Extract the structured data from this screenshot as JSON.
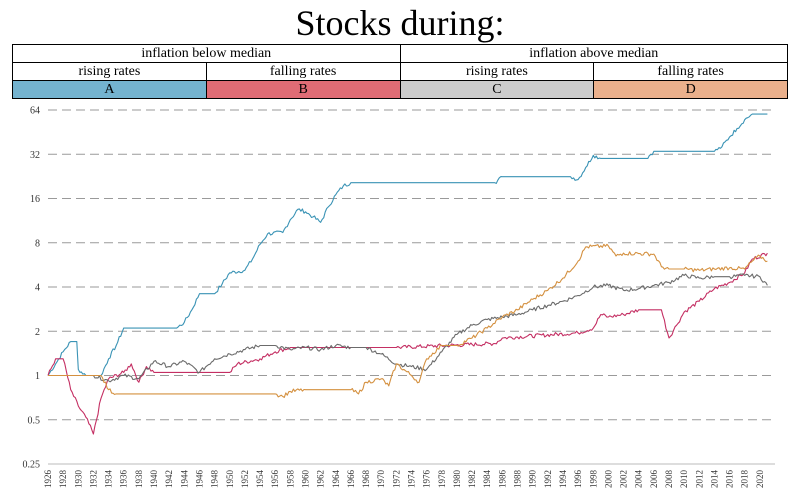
{
  "title": "Stocks during:",
  "header": {
    "groups": [
      "inflation below median",
      "inflation above median"
    ],
    "subgroups": [
      "rising rates",
      "falling rates",
      "rising rates",
      "falling rates"
    ],
    "regimes": [
      {
        "letter": "A",
        "color": "#74b3cf"
      },
      {
        "letter": "B",
        "color": "#e06c75"
      },
      {
        "letter": "C",
        "color": "#cccccc"
      },
      {
        "letter": "D",
        "color": "#eab08c"
      }
    ]
  },
  "chart_data": {
    "type": "line",
    "title": "Stocks during:",
    "xlabel": "",
    "ylabel": "",
    "yscale": "log2",
    "ylim": [
      0.25,
      64
    ],
    "yticks": [
      0.25,
      0.5,
      1,
      2,
      4,
      8,
      16,
      32,
      64
    ],
    "ytick_labels": [
      "0.25",
      "0.5",
      "1",
      "2",
      "4",
      "8",
      "16",
      "32",
      "64"
    ],
    "xlim": [
      1926,
      2022
    ],
    "xticks": [
      1926,
      1928,
      1930,
      1932,
      1934,
      1936,
      1938,
      1940,
      1942,
      1944,
      1946,
      1948,
      1950,
      1952,
      1954,
      1956,
      1958,
      1960,
      1962,
      1964,
      1966,
      1968,
      1970,
      1972,
      1974,
      1976,
      1978,
      1980,
      1982,
      1984,
      1986,
      1988,
      1990,
      1992,
      1994,
      1996,
      1998,
      2000,
      2002,
      2004,
      2006,
      2008,
      2010,
      2012,
      2014,
      2016,
      2018,
      2020
    ],
    "grid": "horizontal-dashed",
    "series": [
      {
        "regime": "A",
        "color": "#3a93b5",
        "points": [
          [
            1926,
            1.0
          ],
          [
            1927,
            1.2
          ],
          [
            1928,
            1.45
          ],
          [
            1929,
            1.7
          ],
          [
            1929.8,
            1.7
          ],
          [
            1930,
            1.1
          ],
          [
            1931,
            1.0
          ],
          [
            1933,
            1.0
          ],
          [
            1934,
            1.3
          ],
          [
            1935,
            1.6
          ],
          [
            1936,
            2.1
          ],
          [
            1943,
            2.1
          ],
          [
            1944,
            2.3
          ],
          [
            1945,
            2.8
          ],
          [
            1946,
            3.6
          ],
          [
            1948,
            3.6
          ],
          [
            1949,
            4.2
          ],
          [
            1950,
            5.0
          ],
          [
            1952,
            5.2
          ],
          [
            1953,
            6.2
          ],
          [
            1954,
            7.8
          ],
          [
            1955,
            9.2
          ],
          [
            1957,
            9.4
          ],
          [
            1958,
            11.5
          ],
          [
            1959,
            13.5
          ],
          [
            1960,
            13.0
          ],
          [
            1961,
            12.0
          ],
          [
            1962,
            11.0
          ],
          [
            1963,
            14.0
          ],
          [
            1964,
            17.0
          ],
          [
            1965,
            19.5
          ],
          [
            1966,
            20.5
          ],
          [
            1985,
            20.5
          ],
          [
            1986,
            22.5
          ],
          [
            1995,
            22.5
          ],
          [
            1996,
            21.5
          ],
          [
            1997,
            26.0
          ],
          [
            1998,
            31.5
          ],
          [
            1999,
            30.0
          ],
          [
            2005,
            30.0
          ],
          [
            2006,
            33.5
          ],
          [
            2014,
            33.5
          ],
          [
            2015,
            36.0
          ],
          [
            2016,
            42.0
          ],
          [
            2017,
            48.0
          ],
          [
            2018,
            55.0
          ],
          [
            2019,
            60.0
          ],
          [
            2021,
            60.0
          ]
        ]
      },
      {
        "regime": "B",
        "color": "#c42f63",
        "points": [
          [
            1926,
            1.0
          ],
          [
            1927,
            1.3
          ],
          [
            1928,
            1.3
          ],
          [
            1929,
            0.8
          ],
          [
            1930,
            0.62
          ],
          [
            1931,
            0.52
          ],
          [
            1932,
            0.4
          ],
          [
            1933,
            0.7
          ],
          [
            1934,
            0.95
          ],
          [
            1936,
            1.05
          ],
          [
            1937,
            1.2
          ],
          [
            1938,
            0.9
          ],
          [
            1939,
            1.15
          ],
          [
            1940,
            1.05
          ],
          [
            1950,
            1.05
          ],
          [
            1951,
            1.2
          ],
          [
            1954,
            1.3
          ],
          [
            1956,
            1.45
          ],
          [
            1958,
            1.55
          ],
          [
            1972,
            1.55
          ],
          [
            1985,
            1.65
          ],
          [
            1986,
            1.8
          ],
          [
            1996,
            1.95
          ],
          [
            1998,
            2.1
          ],
          [
            1999,
            2.6
          ],
          [
            2000,
            2.5
          ],
          [
            2002,
            2.6
          ],
          [
            2004,
            2.8
          ],
          [
            2007,
            2.8
          ],
          [
            2008,
            1.8
          ],
          [
            2009,
            2.2
          ],
          [
            2010,
            2.7
          ],
          [
            2012,
            3.2
          ],
          [
            2014,
            3.9
          ],
          [
            2016,
            4.3
          ],
          [
            2018,
            5.0
          ],
          [
            2019,
            6.2
          ],
          [
            2021,
            6.8
          ]
        ]
      },
      {
        "regime": "C",
        "color": "#6b6b6b",
        "points": [
          [
            1926,
            1.0
          ],
          [
            1928,
            1.0
          ],
          [
            1930,
            1.0
          ],
          [
            1932,
            1.0
          ],
          [
            1934,
            0.92
          ],
          [
            1936,
            1.0
          ],
          [
            1938,
            0.95
          ],
          [
            1940,
            1.25
          ],
          [
            1942,
            1.15
          ],
          [
            1944,
            1.25
          ],
          [
            1946,
            1.05
          ],
          [
            1948,
            1.3
          ],
          [
            1950,
            1.4
          ],
          [
            1952,
            1.5
          ],
          [
            1954,
            1.6
          ],
          [
            1956,
            1.6
          ],
          [
            1958,
            1.5
          ],
          [
            1960,
            1.55
          ],
          [
            1962,
            1.5
          ],
          [
            1964,
            1.6
          ],
          [
            1966,
            1.55
          ],
          [
            1968,
            1.55
          ],
          [
            1970,
            1.4
          ],
          [
            1972,
            1.2
          ],
          [
            1974,
            1.15
          ],
          [
            1976,
            1.1
          ],
          [
            1978,
            1.45
          ],
          [
            1980,
            1.9
          ],
          [
            1982,
            2.2
          ],
          [
            1984,
            2.4
          ],
          [
            1986,
            2.5
          ],
          [
            1988,
            2.6
          ],
          [
            1990,
            2.8
          ],
          [
            1992,
            3.0
          ],
          [
            1994,
            3.2
          ],
          [
            1996,
            3.5
          ],
          [
            1998,
            4.0
          ],
          [
            2000,
            4.1
          ],
          [
            2002,
            3.8
          ],
          [
            2004,
            3.9
          ],
          [
            2006,
            4.1
          ],
          [
            2008,
            4.3
          ],
          [
            2010,
            4.8
          ],
          [
            2012,
            4.6
          ],
          [
            2014,
            4.7
          ],
          [
            2016,
            4.7
          ],
          [
            2018,
            4.8
          ],
          [
            2020,
            4.7
          ],
          [
            2021,
            4.1
          ]
        ]
      },
      {
        "regime": "D",
        "color": "#d4903f",
        "points": [
          [
            1926,
            1.0
          ],
          [
            1928,
            1.0
          ],
          [
            1931,
            1.0
          ],
          [
            1933,
            1.0
          ],
          [
            1934,
            0.8
          ],
          [
            1935,
            0.75
          ],
          [
            1956,
            0.75
          ],
          [
            1957,
            0.72
          ],
          [
            1958,
            0.78
          ],
          [
            1960,
            0.8
          ],
          [
            1962,
            0.8
          ],
          [
            1966,
            0.8
          ],
          [
            1967,
            0.75
          ],
          [
            1968,
            0.9
          ],
          [
            1970,
            0.95
          ],
          [
            1971,
            0.85
          ],
          [
            1972,
            1.2
          ],
          [
            1974,
            1.0
          ],
          [
            1975,
            0.9
          ],
          [
            1976,
            1.3
          ],
          [
            1978,
            1.6
          ],
          [
            1980,
            1.6
          ],
          [
            1982,
            1.8
          ],
          [
            1984,
            2.1
          ],
          [
            1986,
            2.5
          ],
          [
            1988,
            2.8
          ],
          [
            1990,
            3.3
          ],
          [
            1992,
            3.8
          ],
          [
            1994,
            4.6
          ],
          [
            1996,
            6.0
          ],
          [
            1997,
            7.5
          ],
          [
            2000,
            7.6
          ],
          [
            2001,
            6.5
          ],
          [
            2002,
            6.8
          ],
          [
            2006,
            6.7
          ],
          [
            2007,
            5.5
          ],
          [
            2008,
            5.3
          ],
          [
            2010,
            5.3
          ],
          [
            2012,
            5.2
          ],
          [
            2014,
            5.3
          ],
          [
            2016,
            5.4
          ],
          [
            2018,
            5.3
          ],
          [
            2019,
            6.0
          ],
          [
            2020,
            6.5
          ],
          [
            2021,
            6.0
          ]
        ]
      }
    ]
  }
}
